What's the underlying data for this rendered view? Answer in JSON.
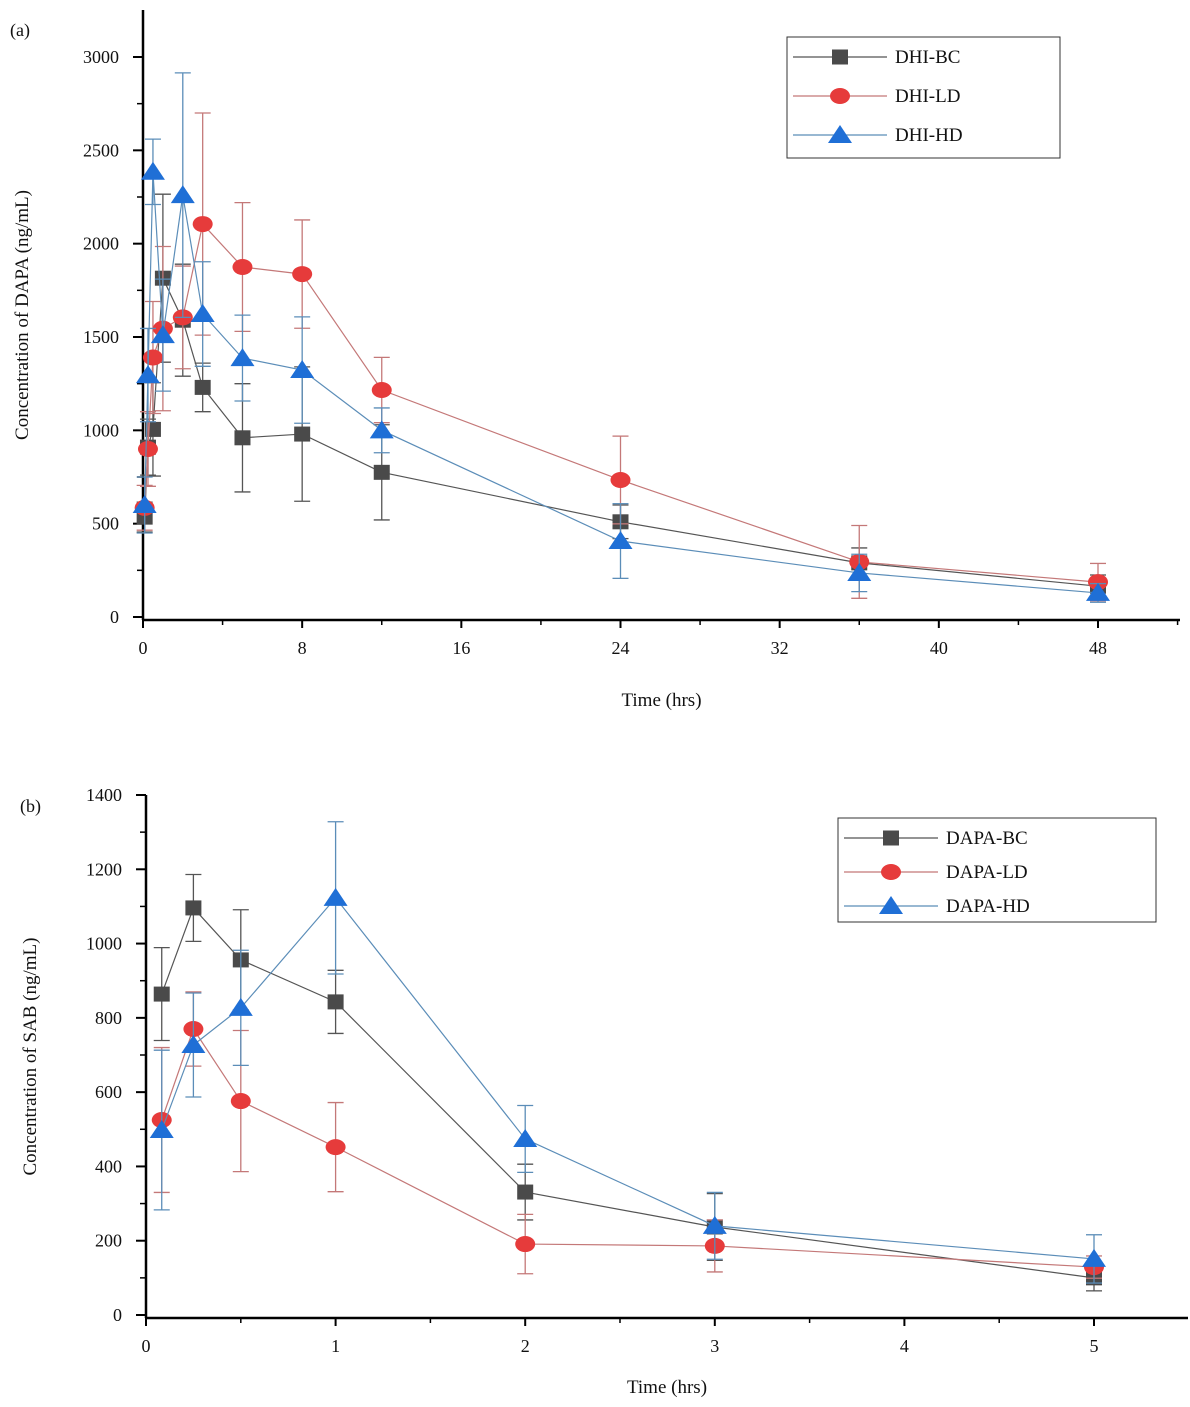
{
  "chart_data": [
    {
      "type": "line",
      "panel_label": "(a)",
      "xlabel": "Time (hrs)",
      "ylabel": "Concentration of DAPA (ng/mL)",
      "xlim": [
        0,
        48
      ],
      "ylim": [
        0,
        3000
      ],
      "xticks": [
        0,
        8,
        16,
        24,
        32,
        40,
        48
      ],
      "xtick_labels": [
        "0",
        "8",
        "16",
        "24",
        "32",
        "40",
        "48"
      ],
      "yticks": [
        0,
        500,
        1000,
        1500,
        2000,
        2500,
        3000
      ],
      "ytick_labels": [
        "0",
        "500",
        "1000",
        "1500",
        "2000",
        "2500",
        "3000"
      ],
      "grid": false,
      "legend_position": "top-right",
      "x": [
        0.083,
        0.25,
        0.5,
        1,
        2,
        3,
        5,
        8,
        12,
        24,
        36,
        48
      ],
      "series": [
        {
          "name": "DHI-BC",
          "marker": "square",
          "color": "#4a4a4a",
          "line_color": "#555555",
          "values": [
            535,
            910,
            1005,
            1815,
            1590,
            1230,
            960,
            980,
            775,
            510,
            290,
            165
          ],
          "errors": [
            80,
            150,
            250,
            450,
            300,
            130,
            290,
            360,
            255,
            90,
            80,
            60
          ]
        },
        {
          "name": "DHI-LD",
          "marker": "circle",
          "color": "#e63b3b",
          "line_color": "#c47878",
          "values": [
            585,
            900,
            1390,
            1545,
            1605,
            2105,
            1875,
            1837,
            1216,
            734,
            295,
            187
          ],
          "errors": [
            120,
            200,
            300,
            440,
            275,
            595,
            345,
            290,
            175,
            235,
            195,
            100
          ]
        },
        {
          "name": "DHI-HD",
          "marker": "triangle",
          "color": "#1f6fd6",
          "line_color": "#5b8db8",
          "values": [
            600,
            1296,
            2385,
            1510,
            2260,
            1623,
            1387,
            1323,
            1000,
            407,
            236,
            129
          ],
          "errors": [
            150,
            250,
            175,
            300,
            655,
            280,
            230,
            285,
            120,
            200,
            100,
            50
          ]
        }
      ]
    },
    {
      "type": "line",
      "panel_label": "(b)",
      "xlabel": "Time (hrs)",
      "ylabel": "Concentration of SAB (ng/mL)",
      "xlim": [
        0,
        5
      ],
      "ylim": [
        0,
        1400
      ],
      "xticks": [
        0,
        1,
        2,
        3,
        4,
        5
      ],
      "xtick_labels": [
        "0",
        "1",
        "2",
        "3",
        "4",
        "5"
      ],
      "yticks": [
        0,
        200,
        400,
        600,
        800,
        1000,
        1200,
        1400
      ],
      "ytick_labels": [
        "0",
        "200",
        "400",
        "600",
        "800",
        "1000",
        "1200",
        "1400"
      ],
      "grid": false,
      "legend_position": "top-right",
      "x": [
        0.083,
        0.25,
        0.5,
        1,
        2,
        3,
        5
      ],
      "series": [
        {
          "name": "DAPA-BC",
          "marker": "square",
          "color": "#4a4a4a",
          "line_color": "#555555",
          "values": [
            864,
            1096,
            956,
            843,
            331,
            237,
            100
          ],
          "errors": [
            125,
            90,
            135,
            85,
            75,
            90,
            35
          ]
        },
        {
          "name": "DAPA-LD",
          "marker": "circle",
          "color": "#e63b3b",
          "line_color": "#c47878",
          "values": [
            525,
            770,
            576,
            452,
            191,
            186,
            129
          ],
          "errors": [
            195,
            100,
            190,
            120,
            80,
            70,
            30
          ]
        },
        {
          "name": "DAPA-HD",
          "marker": "triangle",
          "color": "#1f6fd6",
          "line_color": "#5b8db8",
          "values": [
            498,
            727,
            827,
            1123,
            474,
            240,
            151
          ],
          "errors": [
            215,
            140,
            155,
            205,
            90,
            90,
            65
          ]
        }
      ]
    }
  ]
}
